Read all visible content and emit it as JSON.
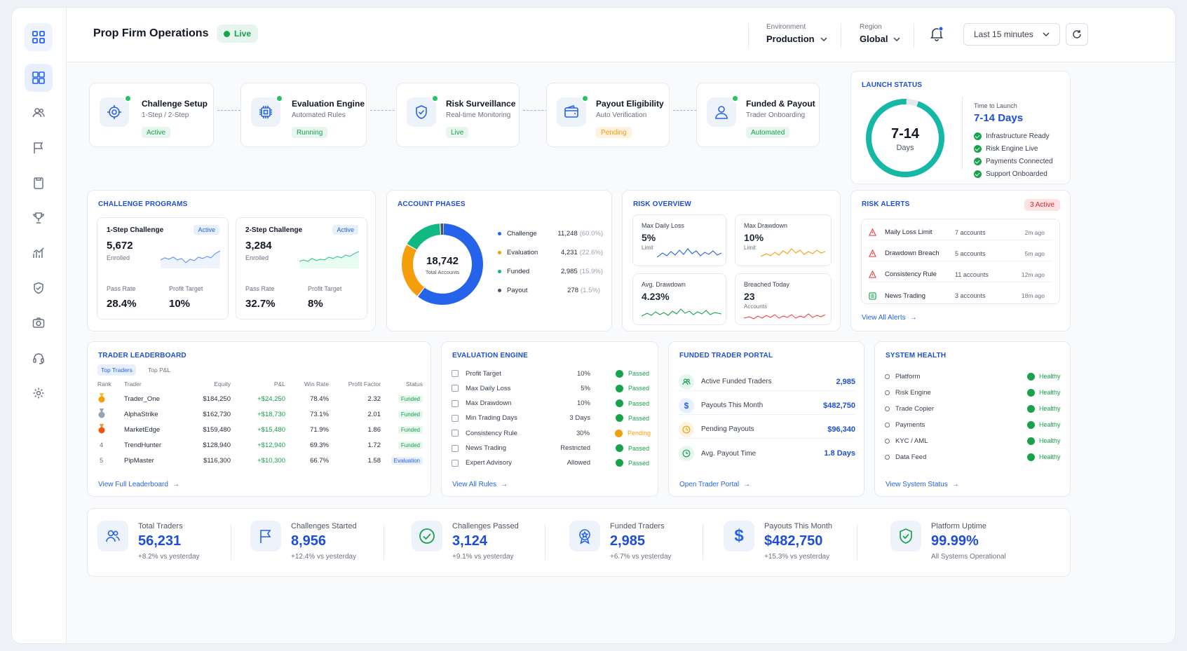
{
  "header": {
    "title": "Prop Firm Operations",
    "live": "Live",
    "environment_label": "Environment",
    "environment_value": "Production",
    "region_label": "Region",
    "region_value": "Global",
    "time_range": "Last 15 minutes"
  },
  "sidebar": {
    "items": [
      "dashboard-icon",
      "users-icon",
      "flag-icon",
      "clipboard-icon",
      "trophy-icon",
      "chart-icon",
      "shield-icon",
      "camera-icon",
      "headset-icon",
      "gear-icon"
    ]
  },
  "pipeline": [
    {
      "title": "Challenge Setup",
      "sub": "1-Step / 2-Step",
      "badge": "Active",
      "icon": "target-icon"
    },
    {
      "title": "Evaluation Engine",
      "sub": "Automated Rules",
      "badge": "Running",
      "icon": "cpu-icon"
    },
    {
      "title": "Risk Surveillance",
      "sub": "Real-time Monitoring",
      "badge": "Live",
      "icon": "shield-icon"
    },
    {
      "title": "Payout Eligibility",
      "sub": "Auto Verification",
      "badge": "Pending",
      "icon": "wallet-icon"
    },
    {
      "title": "Funded & Payout",
      "sub": "Trader Onboarding",
      "badge": "Automated",
      "icon": "user-icon"
    }
  ],
  "launch": {
    "title": "LAUNCH STATUS",
    "ring_value": "7-14",
    "ring_unit": "Days",
    "ttl_label": "Time to Launch",
    "ttl_value": "7-14 Days",
    "checks": [
      "Infrastructure Ready",
      "Risk Engine Live",
      "Payments Connected",
      "Support Onboarded"
    ]
  },
  "programs": {
    "title": "CHALLENGE PROGRAMS",
    "items": [
      {
        "name": "1-Step Challenge",
        "badge": "Active",
        "value": "5,672",
        "unit": "Enrolled",
        "pass_label": "Pass Rate",
        "pass": "28.4%",
        "pt_label": "Profit Target",
        "pt": "10%"
      },
      {
        "name": "2-Step Challenge",
        "badge": "Active",
        "value": "3,284",
        "unit": "Enrolled",
        "pass_label": "Pass Rate",
        "pass": "32.7%",
        "pt_label": "Profit Target",
        "pt": "8%"
      }
    ]
  },
  "phases": {
    "title": "ACCOUNT PHASES",
    "total": "18,742",
    "total_label": "Total Accounts",
    "items": [
      {
        "name": "Challenge",
        "value": "11,248",
        "pct": "(60.0%)",
        "color": "#2563eb",
        "share": 60.0
      },
      {
        "name": "Evaluation",
        "value": "4,231",
        "pct": "(22.6%)",
        "color": "#f59e0b",
        "share": 22.6
      },
      {
        "name": "Funded",
        "value": "2,985",
        "pct": "(15.9%)",
        "color": "#10b981",
        "share": 15.9
      },
      {
        "name": "Payout",
        "value": "278",
        "pct": "(1.5%)",
        "color": "#475569",
        "share": 1.5
      }
    ]
  },
  "risk": {
    "title": "RISK OVERVIEW",
    "items": [
      {
        "label": "Max Daily Loss",
        "value": "5%",
        "sub": "Limit",
        "color": "#2563eb"
      },
      {
        "label": "Max Drawdown",
        "value": "10%",
        "sub": "Limit",
        "color": "#f59e0b"
      },
      {
        "label": "Avg. Drawdown",
        "value": "4.23%",
        "sub": "",
        "color": "#16a34a"
      },
      {
        "label": "Breached Today",
        "value": "23",
        "sub": "Accounts",
        "color": "#ef4444"
      }
    ]
  },
  "alerts": {
    "title": "RISK ALERTS",
    "badge": "3 Active",
    "items": [
      {
        "name": "Maily Loss Limit",
        "count": "7 accounts",
        "time": "2m ago"
      },
      {
        "name": "Drawdown Breach",
        "count": "5 accounts",
        "time": "5m ago"
      },
      {
        "name": "Consistency Rule",
        "count": "11 accounts",
        "time": "12m ago"
      },
      {
        "name": "News Trading",
        "count": "3 accounts",
        "time": "18m ago"
      }
    ],
    "link": "View All Alerts"
  },
  "leaderboard": {
    "title": "TRADER LEADERBOARD",
    "tabs": [
      "Top Traders",
      "Top P&L"
    ],
    "columns": [
      "Rank",
      "Trader",
      "Equity",
      "P&L",
      "Win Rate",
      "Profit Factor",
      "Status"
    ],
    "rows": [
      {
        "rank": "1",
        "trader": "Trader_One",
        "equity": "$184,250",
        "pnl": "+$24,250",
        "win": "78.4%",
        "pf": "2.32",
        "status": "Funded"
      },
      {
        "rank": "2",
        "trader": "AlphaStrike",
        "equity": "$162,730",
        "pnl": "+$18,730",
        "win": "73.1%",
        "pf": "2.01",
        "status": "Funded"
      },
      {
        "rank": "3",
        "trader": "MarketEdge",
        "equity": "$159,480",
        "pnl": "+$15,480",
        "win": "71.9%",
        "pf": "1.86",
        "status": "Funded"
      },
      {
        "rank": "4",
        "trader": "TrendHunter",
        "equity": "$128,940",
        "pnl": "+$12,940",
        "win": "69.3%",
        "pf": "1.72",
        "status": "Funded"
      },
      {
        "rank": "5",
        "trader": "PipMaster",
        "equity": "$116,300",
        "pnl": "+$10,300",
        "win": "66.7%",
        "pf": "1.58",
        "status": "Evaluation"
      }
    ],
    "link": "View Full Leaderboard"
  },
  "evaluation": {
    "title": "EVALUATION ENGINE",
    "rows": [
      {
        "rule": "Profit Target",
        "value": "10%",
        "status": "Passed"
      },
      {
        "rule": "Max Daily Loss",
        "value": "5%",
        "status": "Passed"
      },
      {
        "rule": "Max Drawdown",
        "value": "10%",
        "status": "Passed"
      },
      {
        "rule": "Min Trading Days",
        "value": "3 Days",
        "status": "Passed"
      },
      {
        "rule": "Consistency Rule",
        "value": "30%",
        "status": "Pending"
      },
      {
        "rule": "News Trading",
        "value": "Restricted",
        "status": "Passed"
      },
      {
        "rule": "Expert Advisory",
        "value": "Allowed",
        "status": "Passed"
      }
    ],
    "link": "View All Rules"
  },
  "portal": {
    "title": "FUNDED TRADER PORTAL",
    "rows": [
      {
        "label": "Active Funded Traders",
        "value": "2,985",
        "icon": "users-icon"
      },
      {
        "label": "Payouts This Month",
        "value": "$482,750",
        "icon": "dollar-icon"
      },
      {
        "label": "Pending Payouts",
        "value": "$96,340",
        "icon": "clock-icon"
      },
      {
        "label": "Avg. Payout Time",
        "value": "1.8 Days",
        "icon": "timer-icon"
      }
    ],
    "link": "Open Trader Portal"
  },
  "health": {
    "title": "SYSTEM HEALTH",
    "rows": [
      {
        "name": "Platform",
        "status": "Healthy"
      },
      {
        "name": "Risk Engine",
        "status": "Healthy"
      },
      {
        "name": "Trade Copier",
        "status": "Healthy"
      },
      {
        "name": "Payments",
        "status": "Healthy"
      },
      {
        "name": "KYC / AML",
        "status": "Healthy"
      },
      {
        "name": "Data Feed",
        "status": "Healthy"
      }
    ],
    "link": "View System Status"
  },
  "kpis": [
    {
      "label": "Total Traders",
      "value": "56,231",
      "sub": "+8.2% vs yesterday",
      "icon": "users-icon"
    },
    {
      "label": "Challenges Started",
      "value": "8,956",
      "sub": "+12.4% vs yesterday",
      "icon": "flag-icon"
    },
    {
      "label": "Challenges Passed",
      "value": "3,124",
      "sub": "+9.1% vs yesterday",
      "icon": "check-circle-icon"
    },
    {
      "label": "Funded Traders",
      "value": "2,985",
      "sub": "+6.7% vs yesterday",
      "icon": "award-icon"
    },
    {
      "label": "Payouts This Month",
      "value": "$482,750",
      "sub": "+15.3% vs yesterday",
      "icon": "dollar-icon"
    },
    {
      "label": "Platform Uptime",
      "value": "99.99%",
      "sub": "All Systems Operational",
      "icon": "shield-check-icon"
    }
  ]
}
